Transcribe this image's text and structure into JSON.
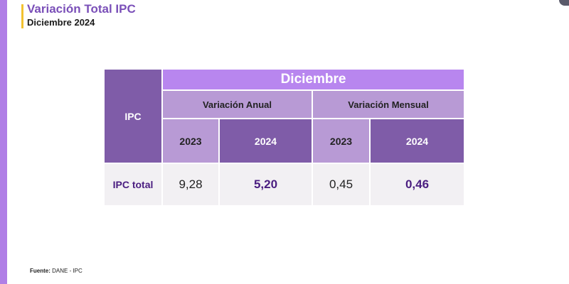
{
  "header": {
    "title": "Variación Total IPC",
    "subtitle": "Diciembre 2024"
  },
  "table": {
    "row_header": "IPC",
    "month": "Diciembre",
    "groups": [
      "Variación Anual",
      "Variación Mensual"
    ],
    "years": [
      "2023",
      "2024",
      "2023",
      "2024"
    ],
    "row": {
      "label": "IPC total",
      "values": [
        "9,28",
        "5,20",
        "0,45",
        "0,46"
      ]
    }
  },
  "footer": {
    "source_label": "Fuente:",
    "source_text": "DANE - IPC"
  },
  "colors": {
    "accent_bar": "#b07fe6",
    "header_accent": "#f2c230",
    "dark_purple": "#7f5ca8",
    "light_purple": "#b89ad5",
    "bright_purple": "#b886ef"
  }
}
